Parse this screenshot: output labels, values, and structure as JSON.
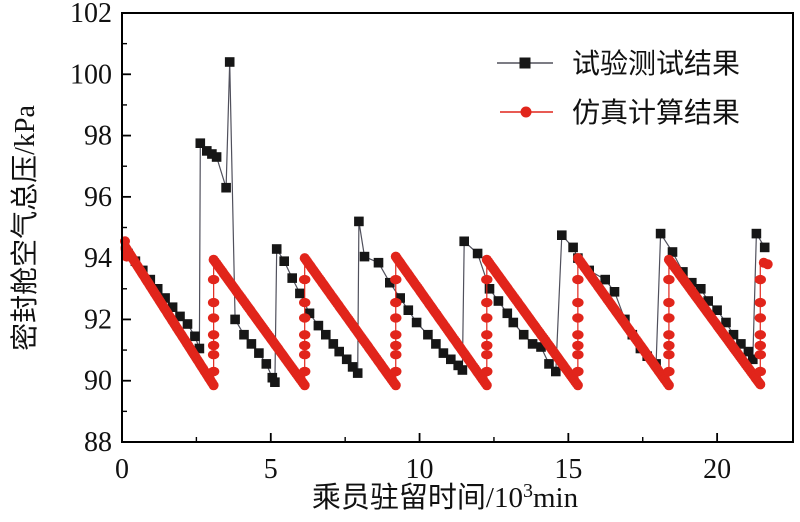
{
  "figure": {
    "background": "#ffffff"
  },
  "legend": {
    "items": [
      {
        "label": "试验测试结果",
        "marker": "square",
        "color": "#161616",
        "line_color": "#50505c"
      },
      {
        "label": "仿真计算结果",
        "marker": "circle",
        "color": "#e1251b",
        "line_color": "#e1251b"
      }
    ]
  },
  "chart_data": {
    "type": "scatter",
    "title": "",
    "xlabel": {
      "prefix": "乘员驻留时间/10",
      "sup": "3",
      "suffix": "min"
    },
    "ylabel": "密封舱空气总压/kPa",
    "xlim": [
      0,
      22.55
    ],
    "ylim": [
      88,
      102
    ],
    "xticks": [
      0,
      5,
      10,
      15,
      20
    ],
    "xminor": [
      2.5,
      7.5,
      12.5,
      17.5
    ],
    "yticks": [
      88,
      90,
      92,
      94,
      96,
      98,
      100,
      102
    ],
    "yminor": [
      89,
      91,
      93,
      95,
      97,
      99,
      101
    ],
    "grid": false,
    "legend_position": "inside-top-right",
    "series": [
      {
        "name": "试验测试结果",
        "marker": "square",
        "marker_color": "#161616",
        "line_color": "#50505c",
        "points": [
          [
            0.2,
            94.15
          ],
          [
            0.45,
            93.9
          ],
          [
            0.7,
            93.6
          ],
          [
            0.95,
            93.3
          ],
          [
            1.2,
            93.0
          ],
          [
            1.45,
            92.7
          ],
          [
            1.7,
            92.4
          ],
          [
            1.95,
            92.1
          ],
          [
            2.2,
            91.85
          ],
          [
            2.45,
            91.45
          ],
          [
            2.6,
            91.05
          ],
          [
            2.63,
            97.75
          ],
          [
            2.85,
            97.5
          ],
          [
            3.02,
            97.4
          ],
          [
            3.18,
            97.3
          ],
          [
            3.5,
            96.3
          ],
          [
            3.62,
            100.4
          ],
          [
            3.8,
            92.0
          ],
          [
            4.1,
            91.5
          ],
          [
            4.35,
            91.2
          ],
          [
            4.6,
            90.9
          ],
          [
            4.85,
            90.55
          ],
          [
            5.05,
            90.1
          ],
          [
            5.14,
            89.95
          ],
          [
            5.2,
            94.3
          ],
          [
            5.45,
            93.9
          ],
          [
            5.72,
            93.35
          ],
          [
            5.98,
            92.85
          ],
          [
            6.3,
            92.2
          ],
          [
            6.6,
            91.8
          ],
          [
            6.85,
            91.5
          ],
          [
            7.1,
            91.2
          ],
          [
            7.3,
            90.95
          ],
          [
            7.55,
            90.7
          ],
          [
            7.75,
            90.45
          ],
          [
            7.92,
            90.25
          ],
          [
            7.96,
            95.2
          ],
          [
            8.15,
            94.05
          ],
          [
            8.62,
            93.85
          ],
          [
            9.0,
            93.2
          ],
          [
            9.35,
            92.7
          ],
          [
            9.62,
            92.3
          ],
          [
            9.9,
            91.9
          ],
          [
            10.28,
            91.5
          ],
          [
            10.55,
            91.2
          ],
          [
            10.8,
            90.9
          ],
          [
            11.05,
            90.7
          ],
          [
            11.3,
            90.5
          ],
          [
            11.44,
            90.35
          ],
          [
            11.5,
            94.55
          ],
          [
            11.95,
            94.15
          ],
          [
            12.35,
            93.0
          ],
          [
            12.65,
            92.6
          ],
          [
            12.95,
            92.2
          ],
          [
            13.15,
            91.9
          ],
          [
            13.5,
            91.5
          ],
          [
            13.8,
            91.2
          ],
          [
            14.08,
            91.1
          ],
          [
            14.35,
            90.55
          ],
          [
            14.58,
            90.3
          ],
          [
            14.78,
            94.75
          ],
          [
            15.16,
            94.35
          ],
          [
            15.32,
            94.0
          ],
          [
            15.7,
            93.6
          ],
          [
            16.24,
            93.3
          ],
          [
            16.55,
            92.9
          ],
          [
            16.9,
            92.0
          ],
          [
            17.15,
            91.5
          ],
          [
            17.42,
            91.05
          ],
          [
            17.65,
            90.8
          ],
          [
            17.95,
            90.55
          ],
          [
            18.1,
            94.8
          ],
          [
            18.5,
            94.2
          ],
          [
            18.85,
            93.55
          ],
          [
            19.15,
            93.2
          ],
          [
            19.45,
            93.0
          ],
          [
            19.7,
            92.6
          ],
          [
            20.0,
            92.3
          ],
          [
            20.3,
            91.9
          ],
          [
            20.55,
            91.5
          ],
          [
            20.8,
            91.2
          ],
          [
            21.05,
            90.95
          ],
          [
            21.2,
            90.7
          ],
          [
            21.32,
            94.8
          ],
          [
            21.6,
            94.35
          ]
        ]
      },
      {
        "name": "仿真计算结果",
        "marker": "circle",
        "marker_color": "#e1251b",
        "line_color": "#e1251b",
        "ramps": [
          [
            0.12,
            94.35,
            3.08,
            89.85
          ],
          [
            3.08,
            93.95,
            6.14,
            89.85
          ],
          [
            6.14,
            94.0,
            9.2,
            89.85
          ],
          [
            9.2,
            94.05,
            12.26,
            89.85
          ],
          [
            12.26,
            93.95,
            15.32,
            89.85
          ],
          [
            15.32,
            94.0,
            18.38,
            89.85
          ],
          [
            18.38,
            93.95,
            21.45,
            89.88
          ]
        ],
        "recovery_dot_values": [
          90.3,
          90.85,
          91.15,
          91.5,
          92.05,
          92.55,
          93.3
        ],
        "start_cluster": [
          [
            0.1,
            94.55
          ],
          [
            0.12,
            94.3
          ],
          [
            0.15,
            94.05
          ]
        ],
        "tail_dots": [
          [
            21.57,
            93.85
          ],
          [
            21.7,
            93.8
          ]
        ]
      }
    ]
  }
}
